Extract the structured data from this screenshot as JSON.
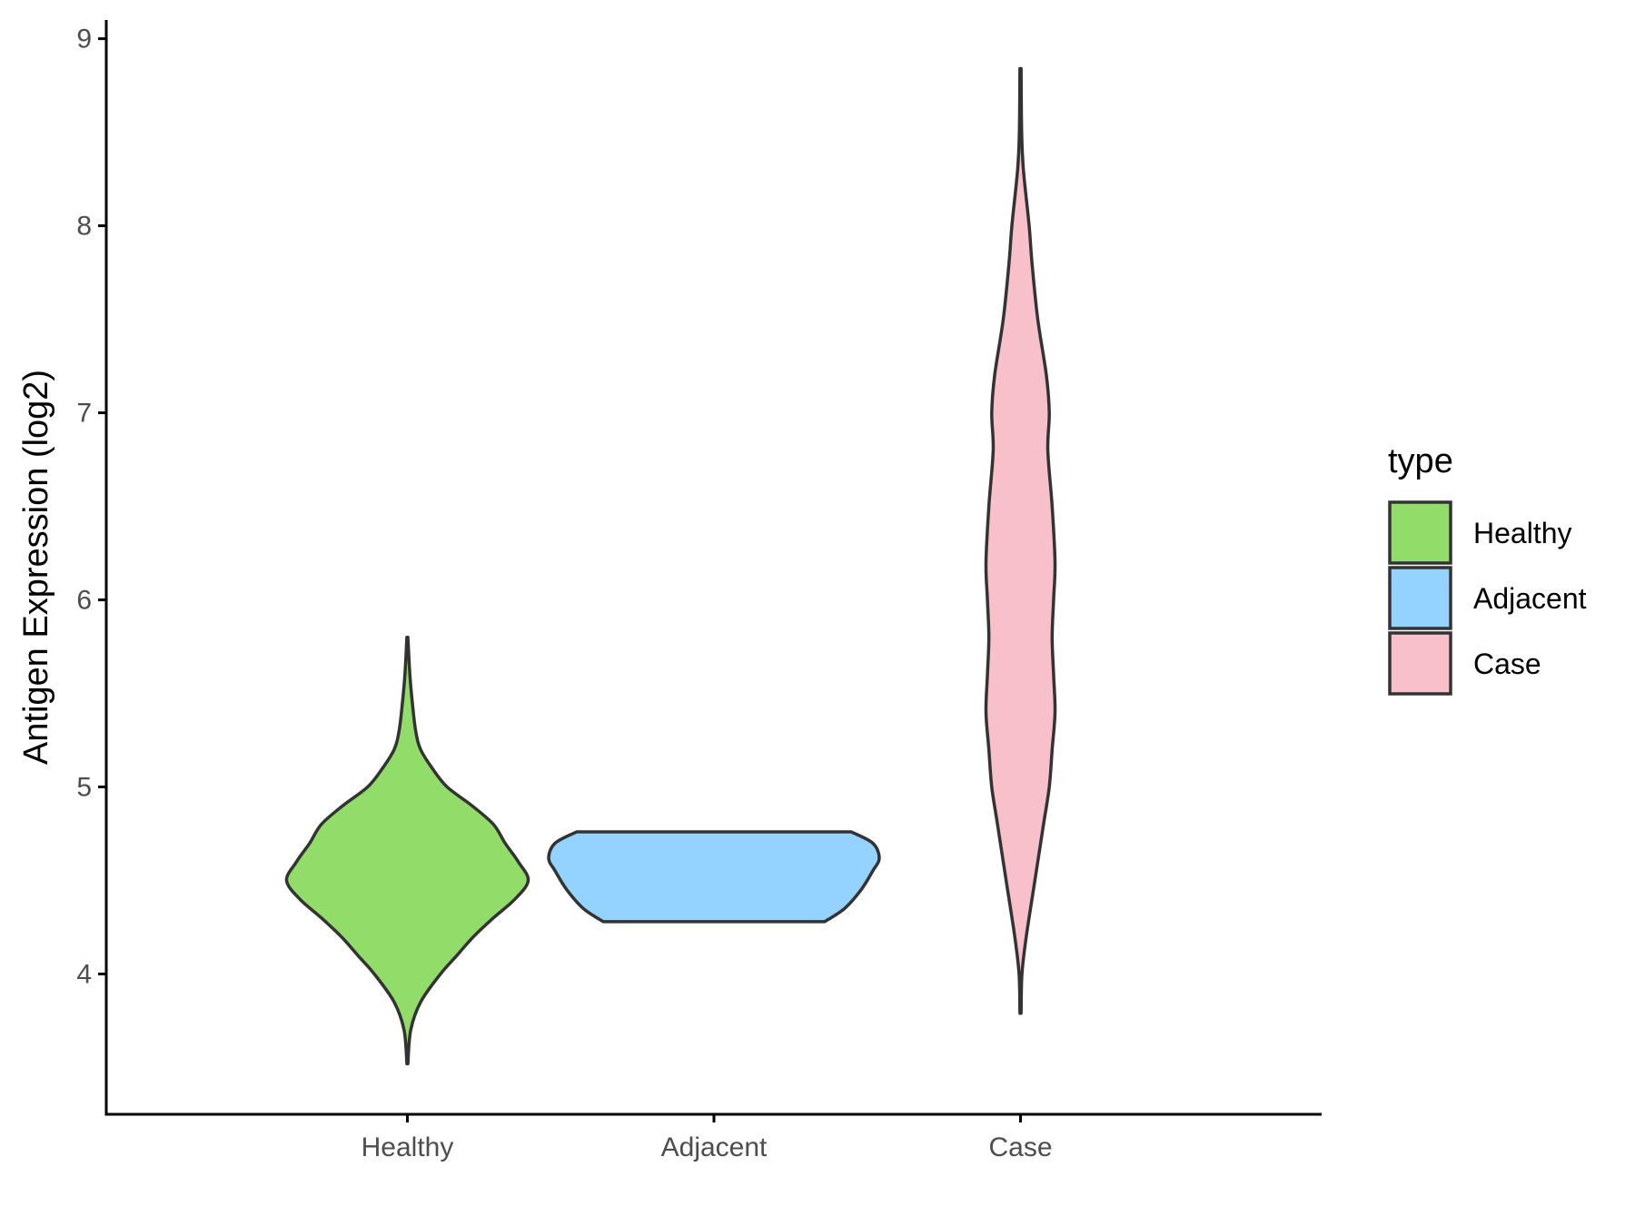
{
  "chart_data": {
    "type": "violin",
    "xlabel": "",
    "ylabel": "Antigen Expression (log2)",
    "ylim": [
      3.25,
      9.1
    ],
    "yticks": [
      4,
      5,
      6,
      7,
      8,
      9
    ],
    "categories": [
      "Healthy",
      "Adjacent",
      "Case"
    ],
    "grid": false,
    "legend": {
      "title": "type",
      "placement": "right",
      "entries": [
        {
          "label": "Healthy",
          "color": "#92DC6A"
        },
        {
          "label": "Adjacent",
          "color": "#94D3FF"
        },
        {
          "label": "Case",
          "color": "#F7C0CB"
        }
      ]
    },
    "series": [
      {
        "category": "Healthy",
        "color": "#92DC6A",
        "range": [
          3.52,
          5.8
        ],
        "density": [
          [
            3.52,
            0.003
          ],
          [
            3.7,
            0.02
          ],
          [
            3.85,
            0.08
          ],
          [
            4.0,
            0.2
          ],
          [
            4.1,
            0.3
          ],
          [
            4.2,
            0.4
          ],
          [
            4.3,
            0.52
          ],
          [
            4.4,
            0.65
          ],
          [
            4.5,
            0.73
          ],
          [
            4.6,
            0.67
          ],
          [
            4.7,
            0.59
          ],
          [
            4.8,
            0.52
          ],
          [
            4.9,
            0.39
          ],
          [
            5.0,
            0.24
          ],
          [
            5.1,
            0.15
          ],
          [
            5.2,
            0.08
          ],
          [
            5.3,
            0.05
          ],
          [
            5.45,
            0.03
          ],
          [
            5.6,
            0.015
          ],
          [
            5.8,
            0.003
          ]
        ]
      },
      {
        "category": "Adjacent",
        "color": "#94D3FF",
        "range": [
          4.28,
          4.76
        ],
        "density": [
          [
            4.28,
            0.67
          ],
          [
            4.35,
            0.79
          ],
          [
            4.45,
            0.89
          ],
          [
            4.55,
            0.96
          ],
          [
            4.62,
            1.0
          ],
          [
            4.7,
            0.96
          ],
          [
            4.76,
            0.83
          ]
        ]
      },
      {
        "category": "Case",
        "color": "#F7C0CB",
        "range": [
          3.79,
          8.84
        ],
        "density": [
          [
            3.79,
            0.002
          ],
          [
            4.0,
            0.005
          ],
          [
            4.2,
            0.02
          ],
          [
            4.5,
            0.05
          ],
          [
            4.8,
            0.08
          ],
          [
            5.0,
            0.1
          ],
          [
            5.2,
            0.11
          ],
          [
            5.4,
            0.12
          ],
          [
            5.6,
            0.115
          ],
          [
            5.8,
            0.11
          ],
          [
            6.0,
            0.115
          ],
          [
            6.2,
            0.12
          ],
          [
            6.5,
            0.11
          ],
          [
            6.8,
            0.095
          ],
          [
            7.0,
            0.1
          ],
          [
            7.2,
            0.09
          ],
          [
            7.5,
            0.06
          ],
          [
            7.8,
            0.04
          ],
          [
            8.0,
            0.03
          ],
          [
            8.3,
            0.01
          ],
          [
            8.5,
            0.004
          ],
          [
            8.84,
            0.002
          ]
        ]
      }
    ]
  }
}
